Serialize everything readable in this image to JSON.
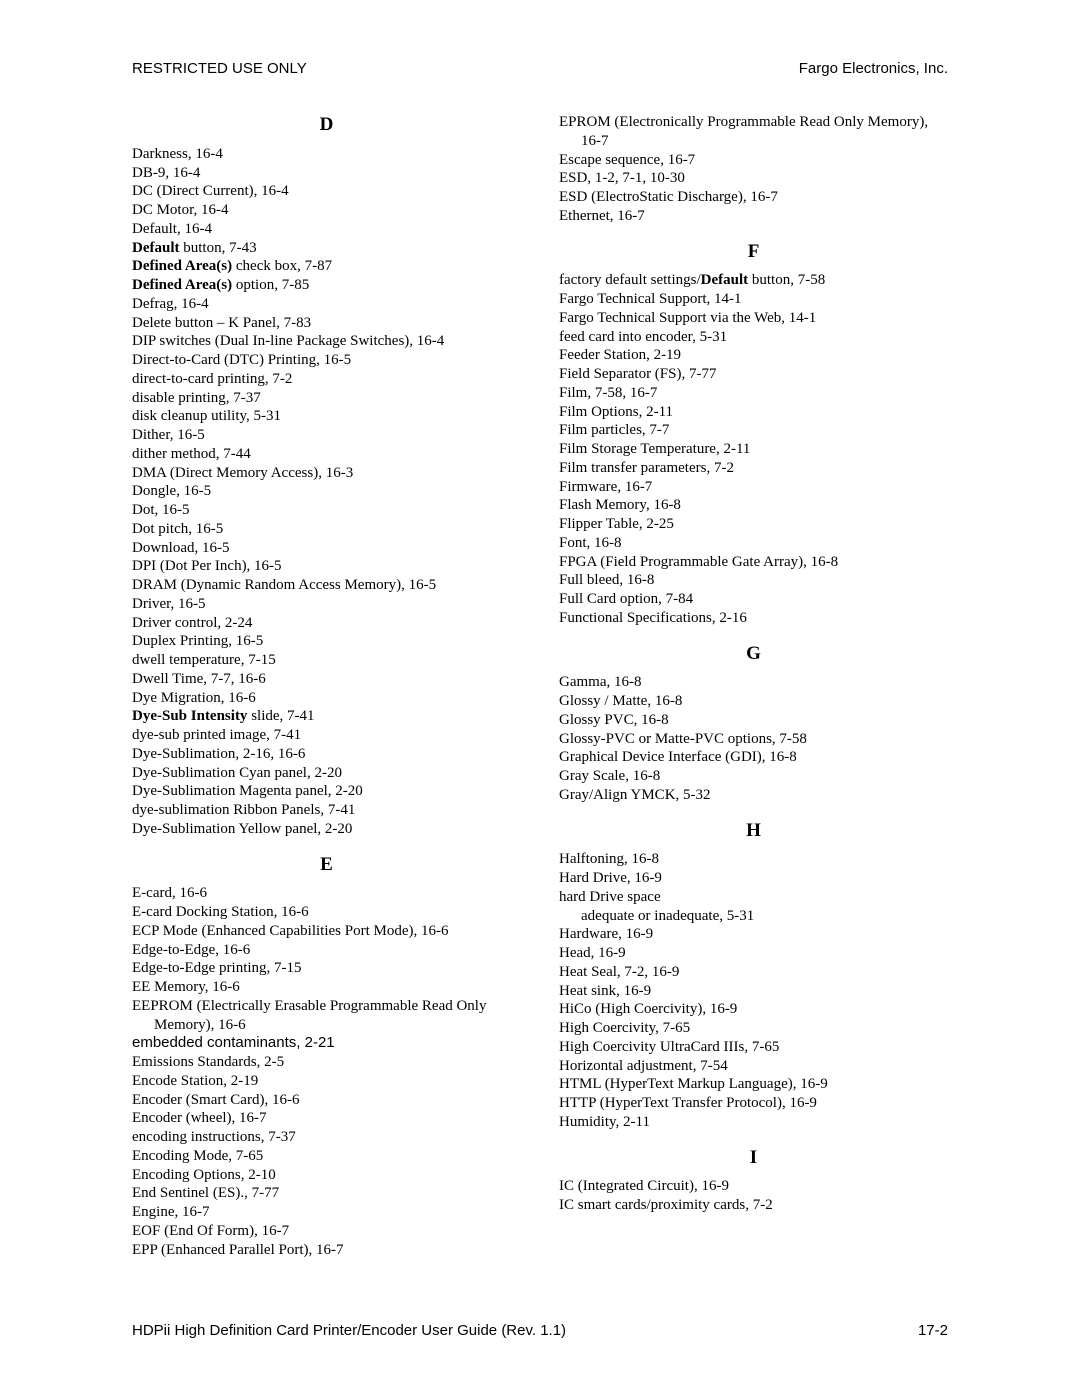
{
  "header": {
    "left": "RESTRICTED USE ONLY",
    "right": "Fargo Electronics, Inc."
  },
  "footer": {
    "left": "HDPii High Definition Card Printer/Encoder User Guide (Rev. 1.1)",
    "right": "17-2"
  },
  "left_column": [
    {
      "type": "letter",
      "text": "D"
    },
    {
      "type": "entry",
      "runs": [
        {
          "t": "Darkness, 16-4"
        }
      ]
    },
    {
      "type": "entry",
      "runs": [
        {
          "t": "DB-9, 16-4"
        }
      ]
    },
    {
      "type": "entry",
      "runs": [
        {
          "t": "DC (Direct Current), 16-4"
        }
      ]
    },
    {
      "type": "entry",
      "runs": [
        {
          "t": "DC Motor, 16-4"
        }
      ]
    },
    {
      "type": "entry",
      "runs": [
        {
          "t": "Default, 16-4"
        }
      ]
    },
    {
      "type": "entry",
      "runs": [
        {
          "t": "Default",
          "b": true
        },
        {
          "t": " button, 7-43"
        }
      ]
    },
    {
      "type": "entry",
      "runs": [
        {
          "t": "Defined Area(s)",
          "b": true
        },
        {
          "t": " check box, 7-87"
        }
      ]
    },
    {
      "type": "entry",
      "runs": [
        {
          "t": "Defined Area(s)",
          "b": true
        },
        {
          "t": " option, 7-85"
        }
      ]
    },
    {
      "type": "entry",
      "runs": [
        {
          "t": "Defrag, 16-4"
        }
      ]
    },
    {
      "type": "entry",
      "runs": [
        {
          "t": "Delete button – K Panel, 7-83"
        }
      ]
    },
    {
      "type": "entry",
      "runs": [
        {
          "t": "DIP switches (Dual In-line Package Switches), 16-4"
        }
      ]
    },
    {
      "type": "entry",
      "runs": [
        {
          "t": "Direct-to-Card (DTC) Printing, 16-5"
        }
      ]
    },
    {
      "type": "entry",
      "runs": [
        {
          "t": "direct-to-card printing, 7-2"
        }
      ]
    },
    {
      "type": "entry",
      "runs": [
        {
          "t": "disable printing, 7-37"
        }
      ]
    },
    {
      "type": "entry",
      "runs": [
        {
          "t": "disk cleanup utility, 5-31"
        }
      ]
    },
    {
      "type": "entry",
      "runs": [
        {
          "t": "Dither, 16-5"
        }
      ]
    },
    {
      "type": "entry",
      "runs": [
        {
          "t": "dither method, 7-44"
        }
      ]
    },
    {
      "type": "entry",
      "runs": [
        {
          "t": "DMA (Direct Memory Access), 16-3"
        }
      ]
    },
    {
      "type": "entry",
      "runs": [
        {
          "t": "Dongle, 16-5"
        }
      ]
    },
    {
      "type": "entry",
      "runs": [
        {
          "t": "Dot, 16-5"
        }
      ]
    },
    {
      "type": "entry",
      "runs": [
        {
          "t": "Dot pitch, 16-5"
        }
      ]
    },
    {
      "type": "entry",
      "runs": [
        {
          "t": "Download, 16-5"
        }
      ]
    },
    {
      "type": "entry",
      "runs": [
        {
          "t": "DPI (Dot Per Inch), 16-5"
        }
      ]
    },
    {
      "type": "entry",
      "runs": [
        {
          "t": "DRAM (Dynamic Random Access Memory), 16-5"
        }
      ]
    },
    {
      "type": "entry",
      "runs": [
        {
          "t": "Driver, 16-5"
        }
      ]
    },
    {
      "type": "entry",
      "runs": [
        {
          "t": "Driver control, 2-24"
        }
      ]
    },
    {
      "type": "entry",
      "runs": [
        {
          "t": "Duplex Printing, 16-5"
        }
      ]
    },
    {
      "type": "entry",
      "runs": [
        {
          "t": "dwell temperature, 7-15"
        }
      ]
    },
    {
      "type": "entry",
      "runs": [
        {
          "t": "Dwell Time, 7-7, 16-6"
        }
      ]
    },
    {
      "type": "entry",
      "runs": [
        {
          "t": "Dye Migration, 16-6"
        }
      ]
    },
    {
      "type": "entry",
      "runs": [
        {
          "t": "Dye-Sub Intensity",
          "b": true
        },
        {
          "t": " slide, 7-41"
        }
      ]
    },
    {
      "type": "entry",
      "runs": [
        {
          "t": "dye-sub printed image, 7-41"
        }
      ]
    },
    {
      "type": "entry",
      "runs": [
        {
          "t": "Dye-Sublimation, 2-16, 16-6"
        }
      ]
    },
    {
      "type": "entry",
      "runs": [
        {
          "t": "Dye-Sublimation Cyan panel, 2-20"
        }
      ]
    },
    {
      "type": "entry",
      "runs": [
        {
          "t": "Dye-Sublimation Magenta panel, 2-20"
        }
      ]
    },
    {
      "type": "entry",
      "runs": [
        {
          "t": "dye-sublimation Ribbon Panels, 7-41"
        }
      ]
    },
    {
      "type": "entry",
      "runs": [
        {
          "t": "Dye-Sublimation Yellow panel, 2-20"
        }
      ]
    },
    {
      "type": "letter",
      "text": "E"
    },
    {
      "type": "entry",
      "runs": [
        {
          "t": "E-card, 16-6"
        }
      ]
    },
    {
      "type": "entry",
      "runs": [
        {
          "t": "E-card Docking Station, 16-6"
        }
      ]
    },
    {
      "type": "entry",
      "runs": [
        {
          "t": "ECP Mode (Enhanced Capabilities Port Mode), 16-6"
        }
      ]
    },
    {
      "type": "entry",
      "runs": [
        {
          "t": "Edge-to-Edge, 16-6"
        }
      ]
    },
    {
      "type": "entry",
      "runs": [
        {
          "t": "Edge-to-Edge printing, 7-15"
        }
      ]
    },
    {
      "type": "entry",
      "runs": [
        {
          "t": "EE Memory, 16-6"
        }
      ]
    },
    {
      "type": "entry",
      "runs": [
        {
          "t": "EEPROM (Electrically Erasable Programmable Read Only Memory), 16-6"
        }
      ]
    },
    {
      "type": "entry",
      "runs": [
        {
          "t": "embedded contaminants",
          "sans": true
        },
        {
          "t": ", 2-21",
          "sans": true
        }
      ]
    },
    {
      "type": "entry",
      "runs": [
        {
          "t": "Emissions Standards, 2-5"
        }
      ]
    },
    {
      "type": "entry",
      "runs": [
        {
          "t": "Encode Station, 2-19"
        }
      ]
    },
    {
      "type": "entry",
      "runs": [
        {
          "t": "Encoder (Smart Card), 16-6"
        }
      ]
    },
    {
      "type": "entry",
      "runs": [
        {
          "t": "Encoder (wheel), 16-7"
        }
      ]
    },
    {
      "type": "entry",
      "runs": [
        {
          "t": "encoding instructions, 7-37"
        }
      ]
    },
    {
      "type": "entry",
      "runs": [
        {
          "t": "Encoding Mode, 7-65"
        }
      ]
    },
    {
      "type": "entry",
      "runs": [
        {
          "t": "Encoding Options, 2-10"
        }
      ]
    },
    {
      "type": "entry",
      "runs": [
        {
          "t": "End Sentinel (ES)., 7-77"
        }
      ]
    },
    {
      "type": "entry",
      "runs": [
        {
          "t": "Engine, 16-7"
        }
      ]
    },
    {
      "type": "entry",
      "runs": [
        {
          "t": "EOF (End Of Form), 16-7"
        }
      ]
    },
    {
      "type": "entry",
      "runs": [
        {
          "t": "EPP (Enhanced Parallel Port), 16-7"
        }
      ]
    }
  ],
  "right_column": [
    {
      "type": "entry",
      "runs": [
        {
          "t": "EPROM (Electronically Programmable Read Only Memory), 16-7"
        }
      ]
    },
    {
      "type": "entry",
      "runs": [
        {
          "t": "Escape sequence, 16-7"
        }
      ]
    },
    {
      "type": "entry",
      "runs": [
        {
          "t": "ESD, 1-2, 7-1, 10-30"
        }
      ]
    },
    {
      "type": "entry",
      "runs": [
        {
          "t": "ESD (ElectroStatic Discharge), 16-7"
        }
      ]
    },
    {
      "type": "entry",
      "runs": [
        {
          "t": "Ethernet, 16-7"
        }
      ]
    },
    {
      "type": "letter",
      "text": "F"
    },
    {
      "type": "entry",
      "runs": [
        {
          "t": "factory default settings/"
        },
        {
          "t": "Default",
          "b": true
        },
        {
          "t": " button, 7-58"
        }
      ]
    },
    {
      "type": "entry",
      "runs": [
        {
          "t": "Fargo Technical Support, 14-1"
        }
      ]
    },
    {
      "type": "entry",
      "runs": [
        {
          "t": "Fargo Technical Support via the Web, 14-1"
        }
      ]
    },
    {
      "type": "entry",
      "runs": [
        {
          "t": "feed card into encoder, 5-31"
        }
      ]
    },
    {
      "type": "entry",
      "runs": [
        {
          "t": "Feeder Station, 2-19"
        }
      ]
    },
    {
      "type": "entry",
      "runs": [
        {
          "t": "Field Separator (FS), 7-77"
        }
      ]
    },
    {
      "type": "entry",
      "runs": [
        {
          "t": "Film, 7-58, 16-7"
        }
      ]
    },
    {
      "type": "entry",
      "runs": [
        {
          "t": "Film Options, 2-11"
        }
      ]
    },
    {
      "type": "entry",
      "runs": [
        {
          "t": "Film particles, 7-7"
        }
      ]
    },
    {
      "type": "entry",
      "runs": [
        {
          "t": "Film Storage Temperature, 2-11"
        }
      ]
    },
    {
      "type": "entry",
      "runs": [
        {
          "t": "Film transfer parameters, 7-2"
        }
      ]
    },
    {
      "type": "entry",
      "runs": [
        {
          "t": "Firmware, 16-7"
        }
      ]
    },
    {
      "type": "entry",
      "runs": [
        {
          "t": "Flash Memory, 16-8"
        }
      ]
    },
    {
      "type": "entry",
      "runs": [
        {
          "t": "Flipper Table, 2-25"
        }
      ]
    },
    {
      "type": "entry",
      "runs": [
        {
          "t": "Font, 16-8"
        }
      ]
    },
    {
      "type": "entry",
      "runs": [
        {
          "t": "FPGA (Field Programmable Gate Array), 16-8"
        }
      ]
    },
    {
      "type": "entry",
      "runs": [
        {
          "t": "Full bleed, 16-8"
        }
      ]
    },
    {
      "type": "entry",
      "runs": [
        {
          "t": "Full Card option, 7-84"
        }
      ]
    },
    {
      "type": "entry",
      "runs": [
        {
          "t": "Functional Specifications, 2-16"
        }
      ]
    },
    {
      "type": "letter",
      "text": "G"
    },
    {
      "type": "entry",
      "runs": [
        {
          "t": "Gamma, 16-8"
        }
      ]
    },
    {
      "type": "entry",
      "runs": [
        {
          "t": "Glossy / Matte, 16-8"
        }
      ]
    },
    {
      "type": "entry",
      "runs": [
        {
          "t": "Glossy PVC, 16-8"
        }
      ]
    },
    {
      "type": "entry",
      "runs": [
        {
          "t": "Glossy-PVC or Matte-PVC options, 7-58"
        }
      ]
    },
    {
      "type": "entry",
      "runs": [
        {
          "t": "Graphical Device Interface (GDI), 16-8"
        }
      ]
    },
    {
      "type": "entry",
      "runs": [
        {
          "t": "Gray Scale, 16-8"
        }
      ]
    },
    {
      "type": "entry",
      "runs": [
        {
          "t": "Gray/Align YMCK, 5-32"
        }
      ]
    },
    {
      "type": "letter",
      "text": "H"
    },
    {
      "type": "entry",
      "runs": [
        {
          "t": "Halftoning, 16-8"
        }
      ]
    },
    {
      "type": "entry",
      "runs": [
        {
          "t": "Hard Drive, 16-9"
        }
      ]
    },
    {
      "type": "entry",
      "runs": [
        {
          "t": "hard Drive space"
        }
      ]
    },
    {
      "type": "sub",
      "runs": [
        {
          "t": "adequate or inadequate, 5-31"
        }
      ]
    },
    {
      "type": "entry",
      "runs": [
        {
          "t": "Hardware, 16-9"
        }
      ]
    },
    {
      "type": "entry",
      "runs": [
        {
          "t": "Head, 16-9"
        }
      ]
    },
    {
      "type": "entry",
      "runs": [
        {
          "t": "Heat Seal, 7-2, 16-9"
        }
      ]
    },
    {
      "type": "entry",
      "runs": [
        {
          "t": "Heat sink, 16-9"
        }
      ]
    },
    {
      "type": "entry",
      "runs": [
        {
          "t": "HiCo (High Coercivity), 16-9"
        }
      ]
    },
    {
      "type": "entry",
      "runs": [
        {
          "t": "High Coercivity, 7-65"
        }
      ]
    },
    {
      "type": "entry",
      "runs": [
        {
          "t": "High Coercivity UltraCard IIIs, 7-65"
        }
      ]
    },
    {
      "type": "entry",
      "runs": [
        {
          "t": "Horizontal adjustment, 7-54"
        }
      ]
    },
    {
      "type": "entry",
      "runs": [
        {
          "t": "HTML (HyperText Markup Language), 16-9"
        }
      ]
    },
    {
      "type": "entry",
      "runs": [
        {
          "t": "HTTP (HyperText Transfer Protocol), 16-9"
        }
      ]
    },
    {
      "type": "entry",
      "runs": [
        {
          "t": "Humidity, 2-11"
        }
      ]
    },
    {
      "type": "letter",
      "text": "I"
    },
    {
      "type": "entry",
      "runs": [
        {
          "t": "IC (Integrated Circuit), 16-9"
        }
      ]
    },
    {
      "type": "entry",
      "runs": [
        {
          "t": "IC smart cards/proximity cards, 7-2"
        }
      ]
    }
  ]
}
